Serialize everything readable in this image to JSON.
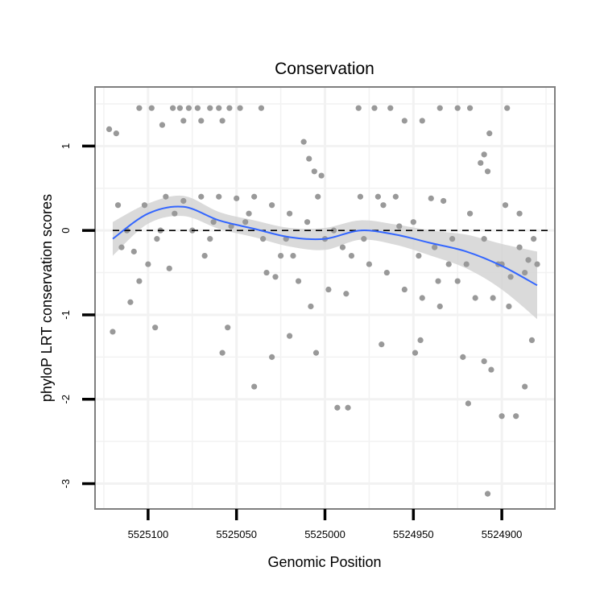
{
  "chart_data": {
    "type": "scatter",
    "title": "Conservation",
    "xlabel": "Genomic Position",
    "ylabel": "phyloP LRT conservation scores",
    "x_reversed": true,
    "xlim": [
      5525130,
      5524870
    ],
    "ylim": [
      -3.3,
      1.7
    ],
    "x_ticks": [
      5525100,
      5525050,
      5525000,
      5524950,
      5524900
    ],
    "x_tick_labels": [
      "5525100",
      "5525050",
      "5525000",
      "5524950",
      "5524900"
    ],
    "y_ticks": [
      1,
      0,
      -1,
      -2,
      -3
    ],
    "y_tick_labels": [
      "1",
      "0",
      "-1",
      "-2",
      "-3"
    ],
    "reference_line": {
      "y": 0,
      "style": "dashed"
    },
    "grid": true,
    "legend": "none",
    "colors": {
      "points": "#999999",
      "smooth_line": "#3366FF",
      "ribbon": "#d3d3d3",
      "panel_border": "#7f7f7f",
      "grid": "#f2f2f2"
    },
    "smooth": {
      "x": [
        5525120,
        5525100,
        5525080,
        5525060,
        5525040,
        5525020,
        5525000,
        5524980,
        5524960,
        5524940,
        5524920,
        5524900,
        5524880
      ],
      "y": [
        -0.1,
        0.2,
        0.28,
        0.12,
        0.02,
        -0.08,
        -0.1,
        0.0,
        -0.05,
        -0.15,
        -0.25,
        -0.42,
        -0.65
      ],
      "lower": [
        -0.3,
        0.08,
        0.17,
        0.02,
        -0.08,
        -0.19,
        -0.23,
        -0.11,
        -0.17,
        -0.3,
        -0.45,
        -0.7,
        -1.05
      ],
      "upper": [
        0.1,
        0.32,
        0.41,
        0.22,
        0.12,
        0.03,
        0.03,
        0.12,
        0.07,
        0.0,
        -0.05,
        -0.16,
        -0.25
      ]
    },
    "points": [
      {
        "x": 5525117,
        "y": 0.3
      },
      {
        "x": 5525112,
        "y": 0.0
      },
      {
        "x": 5525108,
        "y": -0.25
      },
      {
        "x": 5525105,
        "y": -0.6
      },
      {
        "x": 5525100,
        "y": -0.4
      },
      {
        "x": 5525095,
        "y": -0.1
      },
      {
        "x": 5525122,
        "y": 1.2
      },
      {
        "x": 5525118,
        "y": 1.15
      },
      {
        "x": 5525120,
        "y": -1.2
      },
      {
        "x": 5525110,
        "y": -0.85
      },
      {
        "x": 5525105,
        "y": 1.45
      },
      {
        "x": 5525098,
        "y": 1.45
      },
      {
        "x": 5525092,
        "y": 1.25
      },
      {
        "x": 5525086,
        "y": 1.45
      },
      {
        "x": 5525082,
        "y": 1.45
      },
      {
        "x": 5525077,
        "y": 1.45
      },
      {
        "x": 5525072,
        "y": 1.45
      },
      {
        "x": 5525065,
        "y": 1.45
      },
      {
        "x": 5525060,
        "y": 1.45
      },
      {
        "x": 5525054,
        "y": 1.45
      },
      {
        "x": 5525048,
        "y": 1.45
      },
      {
        "x": 5525036,
        "y": 1.45
      },
      {
        "x": 5525080,
        "y": 1.3
      },
      {
        "x": 5525070,
        "y": 1.3
      },
      {
        "x": 5525058,
        "y": 1.3
      },
      {
        "x": 5525096,
        "y": -1.15
      },
      {
        "x": 5525058,
        "y": -1.45
      },
      {
        "x": 5525055,
        "y": -1.15
      },
      {
        "x": 5525040,
        "y": -1.85
      },
      {
        "x": 5525030,
        "y": -1.5
      },
      {
        "x": 5525020,
        "y": -1.25
      },
      {
        "x": 5525012,
        "y": 1.05
      },
      {
        "x": 5525009,
        "y": 0.85
      },
      {
        "x": 5525006,
        "y": 0.7
      },
      {
        "x": 5525002,
        "y": 0.65
      },
      {
        "x": 5525008,
        "y": -0.9
      },
      {
        "x": 5525005,
        "y": -1.45
      },
      {
        "x": 5524993,
        "y": -2.1
      },
      {
        "x": 5524987,
        "y": -2.1
      },
      {
        "x": 5524988,
        "y": -0.75
      },
      {
        "x": 5524981,
        "y": 1.45
      },
      {
        "x": 5524972,
        "y": 1.45
      },
      {
        "x": 5524963,
        "y": 1.45
      },
      {
        "x": 5524955,
        "y": 1.3
      },
      {
        "x": 5524945,
        "y": 1.3
      },
      {
        "x": 5524935,
        "y": 1.45
      },
      {
        "x": 5524925,
        "y": 1.45
      },
      {
        "x": 5524918,
        "y": 1.45
      },
      {
        "x": 5524897,
        "y": 1.45
      },
      {
        "x": 5524907,
        "y": 1.15
      },
      {
        "x": 5524968,
        "y": -1.35
      },
      {
        "x": 5524949,
        "y": -1.45
      },
      {
        "x": 5524946,
        "y": -1.3
      },
      {
        "x": 5524935,
        "y": -0.9
      },
      {
        "x": 5524922,
        "y": -1.5
      },
      {
        "x": 5524919,
        "y": -2.05
      },
      {
        "x": 5524910,
        "y": -1.55
      },
      {
        "x": 5524906,
        "y": -1.65
      },
      {
        "x": 5524900,
        "y": -2.2
      },
      {
        "x": 5524892,
        "y": -2.2
      },
      {
        "x": 5524887,
        "y": -1.85
      },
      {
        "x": 5524883,
        "y": -1.3
      },
      {
        "x": 5524908,
        "y": -3.12
      },
      {
        "x": 5524912,
        "y": 0.8
      },
      {
        "x": 5524910,
        "y": 0.9
      },
      {
        "x": 5524908,
        "y": 0.7
      },
      {
        "x": 5525090,
        "y": 0.4
      },
      {
        "x": 5525080,
        "y": 0.35
      },
      {
        "x": 5525070,
        "y": 0.4
      },
      {
        "x": 5525060,
        "y": 0.4
      },
      {
        "x": 5525050,
        "y": 0.38
      },
      {
        "x": 5525040,
        "y": 0.4
      },
      {
        "x": 5525030,
        "y": 0.3
      },
      {
        "x": 5525020,
        "y": 0.2
      },
      {
        "x": 5525010,
        "y": 0.1
      },
      {
        "x": 5525000,
        "y": -0.1
      },
      {
        "x": 5524990,
        "y": -0.2
      },
      {
        "x": 5524980,
        "y": 0.4
      },
      {
        "x": 5524970,
        "y": 0.4
      },
      {
        "x": 5524960,
        "y": 0.4
      },
      {
        "x": 5524950,
        "y": 0.1
      },
      {
        "x": 5524940,
        "y": 0.38
      },
      {
        "x": 5524930,
        "y": -0.4
      },
      {
        "x": 5524920,
        "y": -0.4
      },
      {
        "x": 5524910,
        "y": -0.1
      },
      {
        "x": 5524900,
        "y": -0.4
      },
      {
        "x": 5524890,
        "y": -0.2
      },
      {
        "x": 5524885,
        "y": -0.35
      },
      {
        "x": 5524880,
        "y": -0.4
      },
      {
        "x": 5525085,
        "y": 0.2
      },
      {
        "x": 5525075,
        "y": 0.0
      },
      {
        "x": 5525065,
        "y": -0.1
      },
      {
        "x": 5525045,
        "y": 0.1
      },
      {
        "x": 5525035,
        "y": -0.1
      },
      {
        "x": 5525025,
        "y": -0.3
      },
      {
        "x": 5525015,
        "y": -0.6
      },
      {
        "x": 5524995,
        "y": 0.0
      },
      {
        "x": 5524985,
        "y": -0.3
      },
      {
        "x": 5524975,
        "y": -0.4
      },
      {
        "x": 5524965,
        "y": -0.5
      },
      {
        "x": 5524955,
        "y": -0.7
      },
      {
        "x": 5524945,
        "y": -0.8
      },
      {
        "x": 5524925,
        "y": -0.6
      },
      {
        "x": 5524915,
        "y": -0.8
      },
      {
        "x": 5524905,
        "y": -0.8
      },
      {
        "x": 5524895,
        "y": -0.55
      },
      {
        "x": 5524902,
        "y": -0.4
      },
      {
        "x": 5524896,
        "y": -0.9
      },
      {
        "x": 5525088,
        "y": -0.45
      },
      {
        "x": 5525068,
        "y": -0.3
      },
      {
        "x": 5525063,
        "y": 0.1
      },
      {
        "x": 5525028,
        "y": -0.55
      },
      {
        "x": 5525018,
        "y": -0.3
      },
      {
        "x": 5525004,
        "y": 0.4
      },
      {
        "x": 5524978,
        "y": -0.1
      },
      {
        "x": 5524958,
        "y": 0.05
      },
      {
        "x": 5524938,
        "y": -0.2
      },
      {
        "x": 5524928,
        "y": -0.1
      },
      {
        "x": 5524918,
        "y": 0.2
      },
      {
        "x": 5524890,
        "y": 0.2
      },
      {
        "x": 5524882,
        "y": -0.1
      },
      {
        "x": 5524898,
        "y": 0.3
      },
      {
        "x": 5525115,
        "y": -0.2
      },
      {
        "x": 5525102,
        "y": 0.3
      },
      {
        "x": 5525093,
        "y": 0.0
      },
      {
        "x": 5525053,
        "y": 0.05
      },
      {
        "x": 5525043,
        "y": 0.2
      },
      {
        "x": 5525033,
        "y": -0.5
      },
      {
        "x": 5525022,
        "y": -0.1
      },
      {
        "x": 5524998,
        "y": -0.7
      },
      {
        "x": 5524967,
        "y": 0.3
      },
      {
        "x": 5524947,
        "y": -0.3
      },
      {
        "x": 5524936,
        "y": -0.6
      },
      {
        "x": 5524933,
        "y": 0.35
      },
      {
        "x": 5524887,
        "y": -0.5
      }
    ]
  }
}
